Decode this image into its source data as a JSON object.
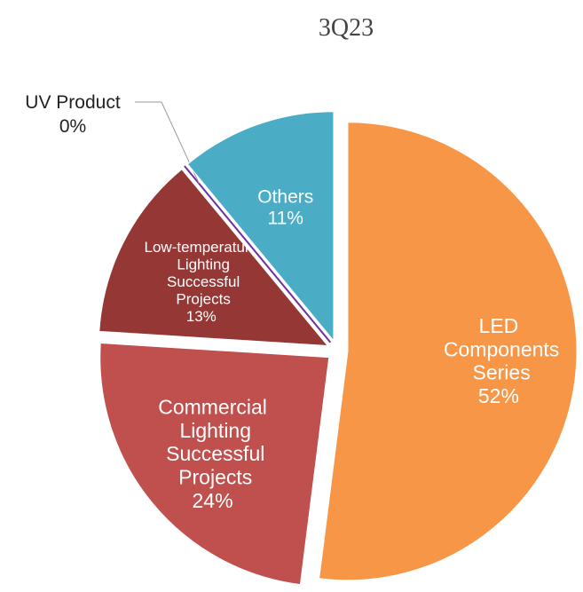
{
  "chart_data": {
    "type": "pie",
    "title": "3Q23",
    "categories": [
      "LED Components Series",
      "Commercial Lighting Successful Projects",
      "Low-temperature Lighting Successful Projects",
      "UV Product",
      "Others"
    ],
    "values": [
      52,
      24,
      13,
      0,
      11
    ],
    "value_labels": [
      "52%",
      "24%",
      "13%",
      "0%",
      "11%"
    ],
    "colors": [
      "#f79646",
      "#c0504d",
      "#953735",
      "#7030a0",
      "#4bacc6"
    ]
  }
}
